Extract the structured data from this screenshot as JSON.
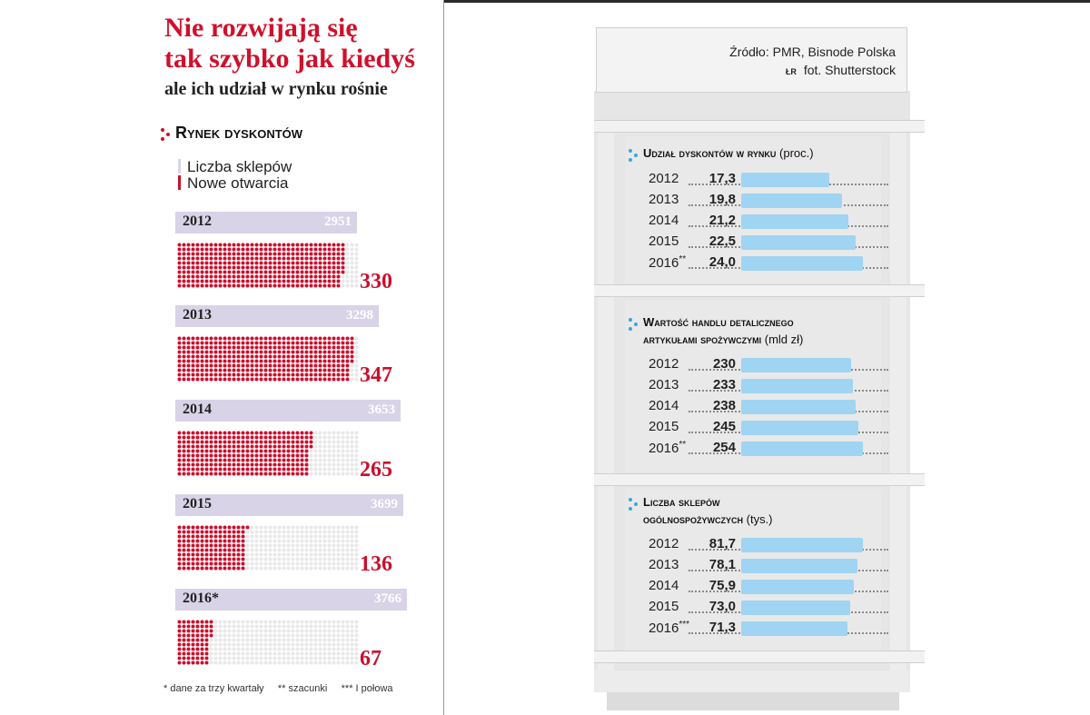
{
  "title_line1": "Nie rozwijają się",
  "title_line2": "tak szybko jak kiedyś",
  "subtitle": "ale ich udział w rynku rośnie",
  "section_title": "Rynek dyskontów",
  "legend": {
    "stores": "Liczba sklepów",
    "new": "Nowe otwarcia"
  },
  "colors": {
    "red": "#c8102e",
    "lavender": "#d9d3e7",
    "blue": "#9fd4f2"
  },
  "source": "Źródło: PMR, Bisnode Polska",
  "photo_brand": "ŁR",
  "photo": "fot. Shutterstock",
  "footnote": "* dane za trzy kwartały     ** szacunki     *** I połowa",
  "chart_data": [
    {
      "type": "bar",
      "categories": [
        "2012",
        "2013",
        "2014",
        "2015",
        "2016*"
      ],
      "series": [
        {
          "name": "Liczba sklepów",
          "values": [
            2951,
            3298,
            3653,
            3699,
            3766
          ]
        },
        {
          "name": "Nowe otwarcia",
          "values": [
            330,
            347,
            265,
            136,
            67
          ]
        }
      ]
    },
    {
      "type": "bar",
      "title": "Udział dyskontów w rynku",
      "unit": "(proc.)",
      "categories": [
        "2012",
        "2013",
        "2014",
        "2015",
        "2016**"
      ],
      "labels": [
        "17,3",
        "19,8",
        "21,2",
        "22,5",
        "24,0"
      ],
      "values": [
        17.3,
        19.8,
        21.2,
        22.5,
        24.0
      ]
    },
    {
      "type": "bar",
      "title_line1": "Wartość handlu detalicznego",
      "title_line2": "artykułami spożywczymi",
      "unit": "(mld zł)",
      "categories": [
        "2012",
        "2013",
        "2014",
        "2015",
        "2016**"
      ],
      "labels": [
        "230",
        "233",
        "238",
        "245",
        "254"
      ],
      "values": [
        230,
        233,
        238,
        245,
        254
      ]
    },
    {
      "type": "bar",
      "title_line1": "Liczba sklepów",
      "title_line2": "ogólnospożywczych",
      "unit": "(tys.)",
      "categories": [
        "2012",
        "2013",
        "2014",
        "2015",
        "2016***"
      ],
      "labels": [
        "81,7",
        "78,1",
        "75,9",
        "73,0",
        "71,3"
      ],
      "values": [
        81.7,
        78.1,
        75.9,
        73.0,
        71.3
      ]
    }
  ]
}
